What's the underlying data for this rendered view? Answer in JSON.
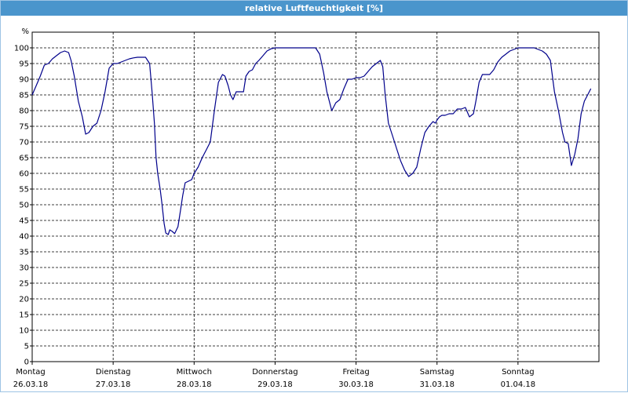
{
  "window": {
    "title": "relative Luftfeuchtigkeit [%]"
  },
  "chart_data": {
    "type": "line",
    "title": "relative Luftfeuchtigkeit [%]",
    "ylabel": "%",
    "xlabel": "",
    "ylim": [
      0,
      105
    ],
    "xlim": [
      0,
      7.0
    ],
    "y_ticks": [
      0,
      5,
      10,
      15,
      20,
      25,
      30,
      35,
      40,
      45,
      50,
      55,
      60,
      65,
      70,
      75,
      80,
      85,
      90,
      95,
      100
    ],
    "y_tick_labels": [
      "0",
      "5",
      "10",
      "15",
      "20",
      "25",
      "30",
      "35",
      "40",
      "45",
      "50",
      "55",
      "60",
      "65",
      "70",
      "75",
      "80",
      "85",
      "90",
      "95",
      "100"
    ],
    "x_ticks": [
      0,
      1,
      2,
      3,
      4,
      5,
      6
    ],
    "x_tick_labels": [
      {
        "day": "Montag",
        "date": "26.03.18"
      },
      {
        "day": "Dienstag",
        "date": "27.03.18"
      },
      {
        "day": "Mittwoch",
        "date": "28.03.18"
      },
      {
        "day": "Donnerstag",
        "date": "29.03.18"
      },
      {
        "day": "Freitag",
        "date": "30.03.18"
      },
      {
        "day": "Samstag",
        "date": "31.03.18"
      },
      {
        "day": "Sonntag",
        "date": "01.04.18"
      }
    ],
    "grid": true,
    "line_color": "#00008b",
    "grid_color": "#000000",
    "series": [
      {
        "points": [
          [
            0.0,
            85
          ],
          [
            0.05,
            88
          ],
          [
            0.1,
            91
          ],
          [
            0.15,
            94.5
          ],
          [
            0.2,
            95
          ],
          [
            0.25,
            96.5
          ],
          [
            0.3,
            97.5
          ],
          [
            0.35,
            98.5
          ],
          [
            0.4,
            99
          ],
          [
            0.45,
            98.5
          ],
          [
            0.48,
            96
          ],
          [
            0.52,
            91
          ],
          [
            0.57,
            83
          ],
          [
            0.62,
            78
          ],
          [
            0.66,
            72.5
          ],
          [
            0.7,
            73
          ],
          [
            0.75,
            75
          ],
          [
            0.8,
            76
          ],
          [
            0.85,
            80
          ],
          [
            0.9,
            86
          ],
          [
            0.95,
            93.5
          ],
          [
            1.0,
            95
          ],
          [
            1.05,
            95
          ],
          [
            1.1,
            95.5
          ],
          [
            1.15,
            96
          ],
          [
            1.2,
            96.5
          ],
          [
            1.25,
            96.8
          ],
          [
            1.3,
            97
          ],
          [
            1.35,
            97
          ],
          [
            1.4,
            97
          ],
          [
            1.45,
            95
          ],
          [
            1.48,
            86
          ],
          [
            1.51,
            76
          ],
          [
            1.53,
            65
          ],
          [
            1.55,
            60
          ],
          [
            1.58,
            55
          ],
          [
            1.6,
            51
          ],
          [
            1.63,
            44
          ],
          [
            1.65,
            41
          ],
          [
            1.68,
            40.5
          ],
          [
            1.7,
            42
          ],
          [
            1.73,
            41.5
          ],
          [
            1.76,
            40.8
          ],
          [
            1.8,
            43
          ],
          [
            1.83,
            48
          ],
          [
            1.86,
            53
          ],
          [
            1.89,
            57
          ],
          [
            1.93,
            57.5
          ],
          [
            1.97,
            58
          ],
          [
            2.0,
            60
          ],
          [
            2.05,
            62
          ],
          [
            2.1,
            65
          ],
          [
            2.15,
            67.5
          ],
          [
            2.2,
            70
          ],
          [
            2.25,
            80
          ],
          [
            2.3,
            89
          ],
          [
            2.35,
            91.5
          ],
          [
            2.38,
            91
          ],
          [
            2.42,
            88
          ],
          [
            2.45,
            85
          ],
          [
            2.48,
            83.5
          ],
          [
            2.52,
            86
          ],
          [
            2.57,
            86
          ],
          [
            2.61,
            86
          ],
          [
            2.64,
            91
          ],
          [
            2.68,
            92.5
          ],
          [
            2.72,
            93
          ],
          [
            2.76,
            95
          ],
          [
            2.8,
            96
          ],
          [
            2.85,
            97.5
          ],
          [
            2.9,
            99
          ],
          [
            2.95,
            99.7
          ],
          [
            3.0,
            100
          ],
          [
            3.1,
            100
          ],
          [
            3.2,
            100
          ],
          [
            3.3,
            100
          ],
          [
            3.4,
            100
          ],
          [
            3.5,
            100
          ],
          [
            3.55,
            98
          ],
          [
            3.6,
            92
          ],
          [
            3.64,
            86
          ],
          [
            3.7,
            80
          ],
          [
            3.75,
            82.5
          ],
          [
            3.8,
            83.5
          ],
          [
            3.85,
            87
          ],
          [
            3.9,
            90
          ],
          [
            3.95,
            90
          ],
          [
            4.0,
            90.5
          ],
          [
            4.05,
            90.5
          ],
          [
            4.1,
            91
          ],
          [
            4.15,
            92.5
          ],
          [
            4.2,
            94
          ],
          [
            4.25,
            95
          ],
          [
            4.3,
            96
          ],
          [
            4.33,
            94
          ],
          [
            4.36,
            85
          ],
          [
            4.4,
            76
          ],
          [
            4.45,
            72
          ],
          [
            4.5,
            68
          ],
          [
            4.55,
            64
          ],
          [
            4.6,
            61
          ],
          [
            4.65,
            59
          ],
          [
            4.7,
            60
          ],
          [
            4.75,
            62
          ],
          [
            4.8,
            68
          ],
          [
            4.85,
            73
          ],
          [
            4.9,
            75
          ],
          [
            4.95,
            76.5
          ],
          [
            4.98,
            76
          ],
          [
            5.0,
            77
          ],
          [
            5.03,
            78
          ],
          [
            5.06,
            78.5
          ],
          [
            5.1,
            78.5
          ],
          [
            5.15,
            79
          ],
          [
            5.2,
            79
          ],
          [
            5.25,
            80.5
          ],
          [
            5.3,
            80.5
          ],
          [
            5.35,
            81
          ],
          [
            5.4,
            78
          ],
          [
            5.45,
            79
          ],
          [
            5.48,
            83
          ],
          [
            5.52,
            89
          ],
          [
            5.56,
            91.5
          ],
          [
            5.6,
            91.5
          ],
          [
            5.65,
            91.5
          ],
          [
            5.7,
            93
          ],
          [
            5.75,
            95.5
          ],
          [
            5.8,
            97
          ],
          [
            5.85,
            98
          ],
          [
            5.9,
            99
          ],
          [
            5.95,
            99.5
          ],
          [
            6.0,
            100
          ],
          [
            6.1,
            100
          ],
          [
            6.2,
            100
          ],
          [
            6.25,
            99.5
          ],
          [
            6.3,
            99
          ],
          [
            6.35,
            98
          ],
          [
            6.4,
            96
          ],
          [
            6.45,
            86
          ],
          [
            6.5,
            80
          ],
          [
            6.55,
            73
          ],
          [
            6.58,
            70
          ],
          [
            6.62,
            69.5
          ],
          [
            6.66,
            62.5
          ],
          [
            6.7,
            66
          ],
          [
            6.74,
            71
          ],
          [
            6.78,
            79
          ],
          [
            6.82,
            83
          ],
          [
            6.86,
            85
          ],
          [
            6.9,
            87
          ]
        ]
      }
    ]
  }
}
